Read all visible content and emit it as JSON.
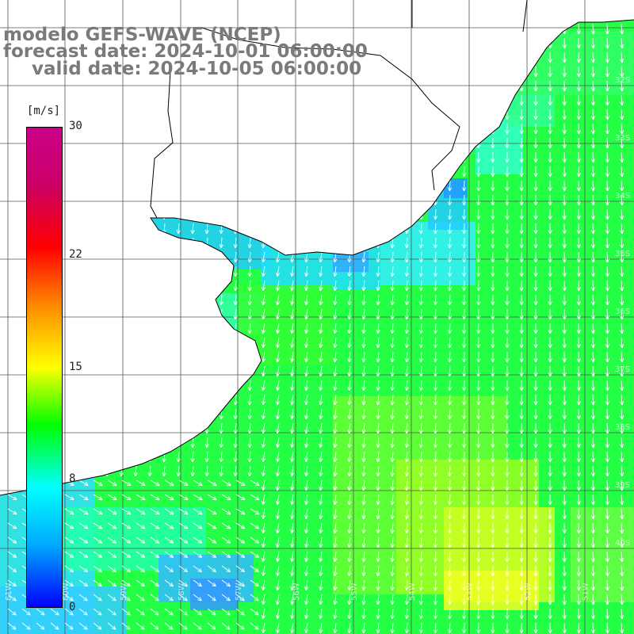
{
  "title": {
    "model": "modelo GEFS-WAVE (NCEP)",
    "forecast": "forecast date: 2024-10-01 06:00:00",
    "valid": "valid date: 2024-10-05 06:00:00"
  },
  "colorbar": {
    "unit": "[m/s]",
    "ticks": [
      "30",
      "22",
      "15",
      "8",
      "0"
    ],
    "tick_values": [
      30,
      22,
      15,
      8,
      0
    ],
    "range": [
      0,
      30
    ],
    "colors": [
      "#0000ff",
      "#00aaff",
      "#00ffff",
      "#00ff00",
      "#ffff00",
      "#ff8800",
      "#ff0000",
      "#cc0066",
      "#cc0088"
    ]
  },
  "map": {
    "lat_labels": [
      "32S",
      "33S",
      "34S",
      "35S",
      "36S",
      "37S",
      "38S",
      "39S",
      "40S"
    ],
    "lon_labels": [
      "61W",
      "60W",
      "59W",
      "58W",
      "57W",
      "56W",
      "55W",
      "54W",
      "53W",
      "52W",
      "51W"
    ],
    "land_color": "#ffffff",
    "grid_color": "#555555",
    "arrow_color": "#ffffff",
    "coast_color": "#000000"
  }
}
